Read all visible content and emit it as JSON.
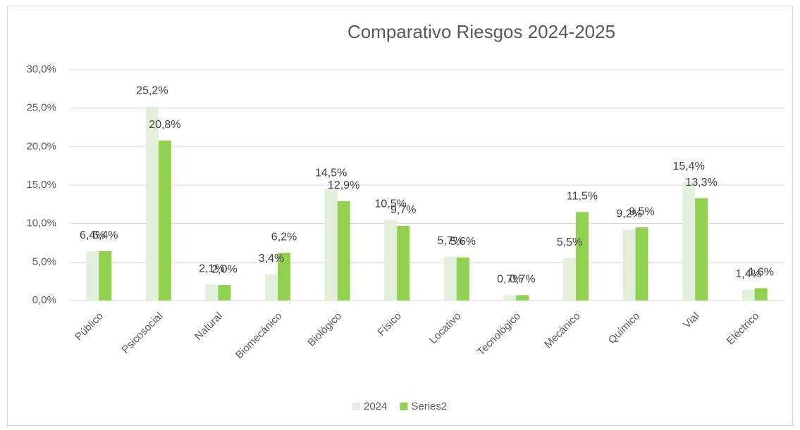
{
  "chart_data": {
    "type": "bar",
    "title": "Comparativo Riesgos 2024-2025",
    "categories": [
      "Público",
      "Psicosocial",
      "Natural",
      "Biomecánico",
      "Biológico",
      "Físico",
      "Locativo",
      "Tecnológico",
      "Mecánico",
      "Químico",
      "Vial",
      "Eléctrico"
    ],
    "series": [
      {
        "name": "2024",
        "color": "#e2efda",
        "values": [
          6.4,
          25.2,
          2.1,
          3.4,
          14.5,
          10.5,
          5.7,
          0.7,
          5.5,
          9.2,
          15.4,
          1.4
        ],
        "value_labels": [
          "6,4%",
          "25,2%",
          "2,1%",
          "3,4%",
          "14,5%",
          "10,5%",
          "5,7%",
          "0,7%",
          "5,5%",
          "9,2%",
          "15,4%",
          "1,4%"
        ]
      },
      {
        "name": "Series2",
        "color": "#92d050",
        "values": [
          6.4,
          20.8,
          2.0,
          6.2,
          12.9,
          9.7,
          5.6,
          0.7,
          11.5,
          9.5,
          13.3,
          1.6
        ],
        "value_labels": [
          "6,4%",
          "20,8%",
          "2,0%",
          "6,2%",
          "12,9%",
          "9,7%",
          "5,6%",
          "0,7%",
          "11,5%",
          "9,5%",
          "13,3%",
          "1,6%"
        ]
      }
    ],
    "ylim": [
      0,
      30
    ],
    "yticks": [
      {
        "value": 0,
        "label": "0,0%"
      },
      {
        "value": 5,
        "label": "5,0%"
      },
      {
        "value": 10,
        "label": "10,0%"
      },
      {
        "value": 15,
        "label": "15,0%"
      },
      {
        "value": 20,
        "label": "20,0%"
      },
      {
        "value": 25,
        "label": "25,0%"
      },
      {
        "value": 30,
        "label": "30,0%"
      }
    ],
    "grid": true,
    "legend": "bottom"
  }
}
